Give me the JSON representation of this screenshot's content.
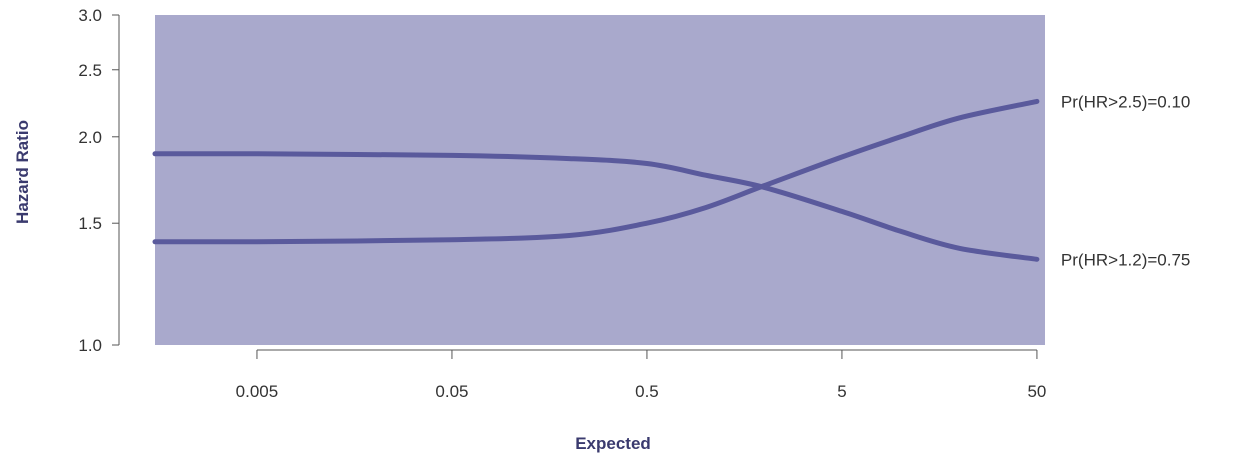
{
  "chart_data": {
    "type": "line",
    "title": "",
    "xlabel": "Expected",
    "ylabel": "Hazard Ratio",
    "x_scale": "log",
    "y_scale": "log",
    "x_ticks": [
      0.005,
      0.05,
      0.5,
      5,
      50
    ],
    "x_tick_labels": [
      "0.005",
      "0.05",
      "0.5",
      "5",
      "50"
    ],
    "y_ticks": [
      1.0,
      1.5,
      2.0,
      2.5,
      3.0
    ],
    "y_tick_labels": [
      "1.0",
      "1.5",
      "2.0",
      "2.5",
      "3.0"
    ],
    "xlim": [
      0.0015,
      55
    ],
    "ylim": [
      1.0,
      3.0
    ],
    "shaded_region": true,
    "grid": false,
    "series": [
      {
        "name": "Pr(HR>2.5)=0.10",
        "x": [
          0.0015,
          0.005,
          0.05,
          0.2,
          0.5,
          1,
          2,
          5,
          10,
          20,
          50
        ],
        "y": [
          1.41,
          1.41,
          1.42,
          1.44,
          1.5,
          1.58,
          1.7,
          1.87,
          2.0,
          2.13,
          2.25
        ]
      },
      {
        "name": "Pr(HR>1.2)=0.75",
        "x": [
          0.0015,
          0.005,
          0.05,
          0.2,
          0.5,
          1,
          2,
          5,
          10,
          20,
          50
        ],
        "y": [
          1.89,
          1.89,
          1.88,
          1.86,
          1.83,
          1.76,
          1.69,
          1.56,
          1.46,
          1.38,
          1.33
        ]
      }
    ],
    "colors": {
      "shade": "#a9a9cc",
      "line": "#5a5a9c",
      "text": "#333333",
      "axis_title": "#3a3a6e"
    }
  }
}
